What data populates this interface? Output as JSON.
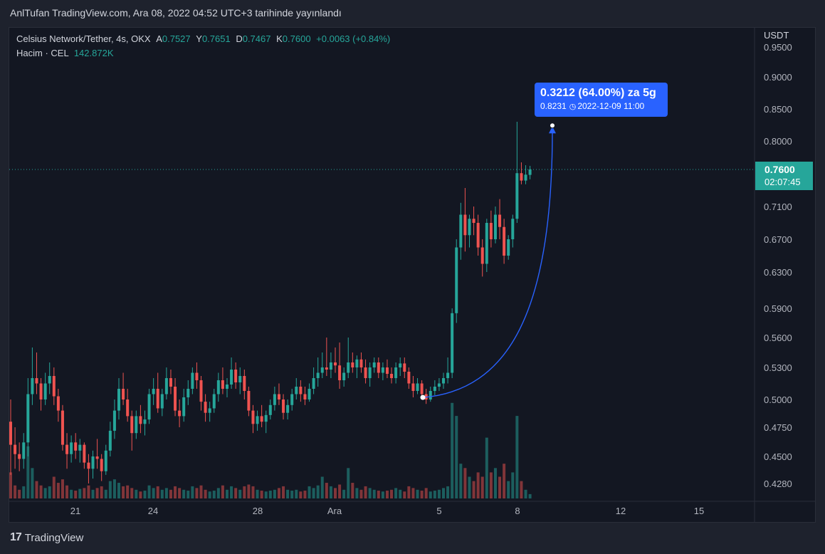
{
  "banner": "AnlTufan TradingView.com, Ara 08, 2022 04:52 UTC+3 tarihinde yayınlandı",
  "legend": {
    "symbol": "Celsius Network/Tether, 4s, OKX",
    "open_label": "A",
    "open": "0.7527",
    "high_label": "Y",
    "high": "0.7651",
    "low_label": "D",
    "low": "0.7467",
    "close_label": "K",
    "close": "0.7600",
    "change": "+0.0063 (+0.84%)",
    "volume_label": "Hacim · CEL",
    "volume": "142.872K"
  },
  "price_axis": {
    "unit": "USDT",
    "ticks": [
      "0.9500",
      "0.9000",
      "0.8500",
      "0.8000",
      "0.7100",
      "0.6700",
      "0.6300",
      "0.5900",
      "0.5600",
      "0.5300",
      "0.5000",
      "0.4750",
      "0.4500",
      "0.4280"
    ]
  },
  "time_axis": {
    "ticks": [
      "21",
      "24",
      "28",
      "Ara",
      "5",
      "8",
      "12",
      "15"
    ]
  },
  "last_price": {
    "price": "0.7600",
    "countdown": "02:07:45"
  },
  "measure": {
    "headline": "0.3212 (64.00%) za 5g",
    "target_price": "0.8231",
    "target_time": "2022-12-09  11:00",
    "clock_icon": "clock-icon"
  },
  "footer": {
    "logo_mark": "17",
    "logo_text": "TradingView"
  },
  "colors": {
    "up": "#26a69a",
    "down": "#ef5350",
    "background": "#131722",
    "measure": "#2962ff",
    "grid": "#1f2430"
  },
  "chart_data": {
    "type": "candlestick",
    "symbol": "Celsius Network/Tether",
    "interval": "4s",
    "exchange": "OKX",
    "y_axis_ticks": [
      0.95,
      0.9,
      0.85,
      0.8,
      0.71,
      0.67,
      0.63,
      0.59,
      0.56,
      0.53,
      0.5,
      0.475,
      0.45,
      0.428
    ],
    "x_axis_ticks": [
      "21",
      "24",
      "28",
      "Ara",
      "5",
      "8",
      "12",
      "15"
    ],
    "last_price": 0.76,
    "measure_start": {
      "price": 0.5019,
      "time": "2022-12-04 ~08:00"
    },
    "measure_end": {
      "price": 0.8231,
      "time": "2022-12-09 11:00"
    },
    "measure_change": 0.3212,
    "measure_change_pct": 64.0,
    "candles": [
      {
        "o": 0.48,
        "h": 0.5,
        "l": 0.435,
        "c": 0.46,
        "v": 30
      },
      {
        "o": 0.46,
        "h": 0.475,
        "l": 0.44,
        "c": 0.452,
        "v": 15
      },
      {
        "o": 0.452,
        "h": 0.462,
        "l": 0.438,
        "c": 0.448,
        "v": 10
      },
      {
        "o": 0.448,
        "h": 0.47,
        "l": 0.44,
        "c": 0.462,
        "v": 14
      },
      {
        "o": 0.462,
        "h": 0.52,
        "l": 0.45,
        "c": 0.505,
        "v": 60
      },
      {
        "o": 0.505,
        "h": 0.55,
        "l": 0.495,
        "c": 0.52,
        "v": 35
      },
      {
        "o": 0.52,
        "h": 0.545,
        "l": 0.505,
        "c": 0.515,
        "v": 20
      },
      {
        "o": 0.515,
        "h": 0.52,
        "l": 0.49,
        "c": 0.5,
        "v": 15
      },
      {
        "o": 0.5,
        "h": 0.525,
        "l": 0.495,
        "c": 0.515,
        "v": 12
      },
      {
        "o": 0.515,
        "h": 0.535,
        "l": 0.505,
        "c": 0.522,
        "v": 14
      },
      {
        "o": 0.522,
        "h": 0.53,
        "l": 0.495,
        "c": 0.503,
        "v": 25
      },
      {
        "o": 0.503,
        "h": 0.51,
        "l": 0.48,
        "c": 0.49,
        "v": 18
      },
      {
        "o": 0.49,
        "h": 0.495,
        "l": 0.455,
        "c": 0.46,
        "v": 22
      },
      {
        "o": 0.46,
        "h": 0.47,
        "l": 0.44,
        "c": 0.452,
        "v": 15
      },
      {
        "o": 0.452,
        "h": 0.468,
        "l": 0.445,
        "c": 0.462,
        "v": 10
      },
      {
        "o": 0.462,
        "h": 0.47,
        "l": 0.448,
        "c": 0.455,
        "v": 9
      },
      {
        "o": 0.455,
        "h": 0.465,
        "l": 0.445,
        "c": 0.46,
        "v": 11
      },
      {
        "o": 0.46,
        "h": 0.462,
        "l": 0.44,
        "c": 0.445,
        "v": 12
      },
      {
        "o": 0.445,
        "h": 0.452,
        "l": 0.428,
        "c": 0.44,
        "v": 15
      },
      {
        "o": 0.44,
        "h": 0.455,
        "l": 0.432,
        "c": 0.45,
        "v": 10
      },
      {
        "o": 0.45,
        "h": 0.465,
        "l": 0.44,
        "c": 0.448,
        "v": 12
      },
      {
        "o": 0.448,
        "h": 0.452,
        "l": 0.43,
        "c": 0.438,
        "v": 14
      },
      {
        "o": 0.438,
        "h": 0.46,
        "l": 0.435,
        "c": 0.455,
        "v": 10
      },
      {
        "o": 0.455,
        "h": 0.48,
        "l": 0.45,
        "c": 0.472,
        "v": 20
      },
      {
        "o": 0.472,
        "h": 0.5,
        "l": 0.465,
        "c": 0.49,
        "v": 22
      },
      {
        "o": 0.49,
        "h": 0.52,
        "l": 0.482,
        "c": 0.51,
        "v": 18
      },
      {
        "o": 0.51,
        "h": 0.525,
        "l": 0.495,
        "c": 0.5,
        "v": 14
      },
      {
        "o": 0.5,
        "h": 0.51,
        "l": 0.48,
        "c": 0.485,
        "v": 15
      },
      {
        "o": 0.485,
        "h": 0.49,
        "l": 0.455,
        "c": 0.47,
        "v": 12
      },
      {
        "o": 0.47,
        "h": 0.49,
        "l": 0.465,
        "c": 0.485,
        "v": 10
      },
      {
        "o": 0.485,
        "h": 0.495,
        "l": 0.47,
        "c": 0.478,
        "v": 8
      },
      {
        "o": 0.478,
        "h": 0.49,
        "l": 0.468,
        "c": 0.482,
        "v": 9
      },
      {
        "o": 0.482,
        "h": 0.51,
        "l": 0.478,
        "c": 0.505,
        "v": 15
      },
      {
        "o": 0.505,
        "h": 0.52,
        "l": 0.495,
        "c": 0.51,
        "v": 12
      },
      {
        "o": 0.51,
        "h": 0.525,
        "l": 0.488,
        "c": 0.492,
        "v": 14
      },
      {
        "o": 0.492,
        "h": 0.51,
        "l": 0.485,
        "c": 0.505,
        "v": 10
      },
      {
        "o": 0.505,
        "h": 0.53,
        "l": 0.5,
        "c": 0.52,
        "v": 12
      },
      {
        "o": 0.52,
        "h": 0.528,
        "l": 0.505,
        "c": 0.512,
        "v": 10
      },
      {
        "o": 0.512,
        "h": 0.52,
        "l": 0.485,
        "c": 0.49,
        "v": 14
      },
      {
        "o": 0.49,
        "h": 0.5,
        "l": 0.475,
        "c": 0.485,
        "v": 12
      },
      {
        "o": 0.485,
        "h": 0.51,
        "l": 0.48,
        "c": 0.502,
        "v": 10
      },
      {
        "o": 0.502,
        "h": 0.518,
        "l": 0.495,
        "c": 0.51,
        "v": 9
      },
      {
        "o": 0.51,
        "h": 0.53,
        "l": 0.505,
        "c": 0.525,
        "v": 14
      },
      {
        "o": 0.525,
        "h": 0.535,
        "l": 0.51,
        "c": 0.518,
        "v": 12
      },
      {
        "o": 0.518,
        "h": 0.522,
        "l": 0.49,
        "c": 0.498,
        "v": 15
      },
      {
        "o": 0.498,
        "h": 0.505,
        "l": 0.48,
        "c": 0.488,
        "v": 10
      },
      {
        "o": 0.488,
        "h": 0.498,
        "l": 0.48,
        "c": 0.492,
        "v": 8
      },
      {
        "o": 0.492,
        "h": 0.51,
        "l": 0.488,
        "c": 0.505,
        "v": 9
      },
      {
        "o": 0.505,
        "h": 0.525,
        "l": 0.498,
        "c": 0.518,
        "v": 12
      },
      {
        "o": 0.518,
        "h": 0.53,
        "l": 0.505,
        "c": 0.51,
        "v": 15
      },
      {
        "o": 0.51,
        "h": 0.52,
        "l": 0.502,
        "c": 0.514,
        "v": 10
      },
      {
        "o": 0.514,
        "h": 0.54,
        "l": 0.51,
        "c": 0.528,
        "v": 14
      },
      {
        "o": 0.528,
        "h": 0.535,
        "l": 0.51,
        "c": 0.516,
        "v": 12
      },
      {
        "o": 0.516,
        "h": 0.53,
        "l": 0.505,
        "c": 0.522,
        "v": 10
      },
      {
        "o": 0.522,
        "h": 0.528,
        "l": 0.5,
        "c": 0.508,
        "v": 14
      },
      {
        "o": 0.508,
        "h": 0.512,
        "l": 0.485,
        "c": 0.49,
        "v": 16
      },
      {
        "o": 0.49,
        "h": 0.495,
        "l": 0.47,
        "c": 0.478,
        "v": 14
      },
      {
        "o": 0.478,
        "h": 0.49,
        "l": 0.472,
        "c": 0.485,
        "v": 10
      },
      {
        "o": 0.485,
        "h": 0.495,
        "l": 0.475,
        "c": 0.48,
        "v": 9
      },
      {
        "o": 0.48,
        "h": 0.49,
        "l": 0.47,
        "c": 0.486,
        "v": 8
      },
      {
        "o": 0.486,
        "h": 0.5,
        "l": 0.482,
        "c": 0.495,
        "v": 9
      },
      {
        "o": 0.495,
        "h": 0.512,
        "l": 0.49,
        "c": 0.505,
        "v": 10
      },
      {
        "o": 0.505,
        "h": 0.515,
        "l": 0.495,
        "c": 0.5,
        "v": 12
      },
      {
        "o": 0.5,
        "h": 0.505,
        "l": 0.482,
        "c": 0.488,
        "v": 14
      },
      {
        "o": 0.488,
        "h": 0.5,
        "l": 0.482,
        "c": 0.495,
        "v": 10
      },
      {
        "o": 0.495,
        "h": 0.51,
        "l": 0.49,
        "c": 0.505,
        "v": 9
      },
      {
        "o": 0.505,
        "h": 0.52,
        "l": 0.5,
        "c": 0.512,
        "v": 10
      },
      {
        "o": 0.512,
        "h": 0.518,
        "l": 0.498,
        "c": 0.505,
        "v": 8
      },
      {
        "o": 0.505,
        "h": 0.512,
        "l": 0.495,
        "c": 0.5,
        "v": 9
      },
      {
        "o": 0.5,
        "h": 0.515,
        "l": 0.498,
        "c": 0.51,
        "v": 14
      },
      {
        "o": 0.51,
        "h": 0.53,
        "l": 0.505,
        "c": 0.52,
        "v": 12
      },
      {
        "o": 0.52,
        "h": 0.54,
        "l": 0.512,
        "c": 0.525,
        "v": 15
      },
      {
        "o": 0.525,
        "h": 0.545,
        "l": 0.52,
        "c": 0.53,
        "v": 25
      },
      {
        "o": 0.53,
        "h": 0.56,
        "l": 0.522,
        "c": 0.528,
        "v": 18
      },
      {
        "o": 0.528,
        "h": 0.545,
        "l": 0.52,
        "c": 0.535,
        "v": 14
      },
      {
        "o": 0.535,
        "h": 0.55,
        "l": 0.525,
        "c": 0.532,
        "v": 12
      },
      {
        "o": 0.532,
        "h": 0.555,
        "l": 0.51,
        "c": 0.518,
        "v": 16
      },
      {
        "o": 0.518,
        "h": 0.53,
        "l": 0.512,
        "c": 0.525,
        "v": 10
      },
      {
        "o": 0.525,
        "h": 0.56,
        "l": 0.52,
        "c": 0.535,
        "v": 35
      },
      {
        "o": 0.535,
        "h": 0.545,
        "l": 0.525,
        "c": 0.53,
        "v": 18
      },
      {
        "o": 0.53,
        "h": 0.542,
        "l": 0.52,
        "c": 0.538,
        "v": 12
      },
      {
        "o": 0.538,
        "h": 0.545,
        "l": 0.525,
        "c": 0.53,
        "v": 10
      },
      {
        "o": 0.53,
        "h": 0.538,
        "l": 0.515,
        "c": 0.52,
        "v": 14
      },
      {
        "o": 0.52,
        "h": 0.535,
        "l": 0.512,
        "c": 0.53,
        "v": 12
      },
      {
        "o": 0.53,
        "h": 0.54,
        "l": 0.525,
        "c": 0.535,
        "v": 10
      },
      {
        "o": 0.535,
        "h": 0.54,
        "l": 0.52,
        "c": 0.525,
        "v": 9
      },
      {
        "o": 0.525,
        "h": 0.535,
        "l": 0.518,
        "c": 0.53,
        "v": 8
      },
      {
        "o": 0.53,
        "h": 0.538,
        "l": 0.52,
        "c": 0.524,
        "v": 9
      },
      {
        "o": 0.524,
        "h": 0.53,
        "l": 0.515,
        "c": 0.52,
        "v": 10
      },
      {
        "o": 0.52,
        "h": 0.535,
        "l": 0.515,
        "c": 0.53,
        "v": 12
      },
      {
        "o": 0.53,
        "h": 0.54,
        "l": 0.522,
        "c": 0.534,
        "v": 10
      },
      {
        "o": 0.534,
        "h": 0.54,
        "l": 0.52,
        "c": 0.526,
        "v": 8
      },
      {
        "o": 0.526,
        "h": 0.53,
        "l": 0.51,
        "c": 0.515,
        "v": 14
      },
      {
        "o": 0.515,
        "h": 0.522,
        "l": 0.502,
        "c": 0.508,
        "v": 12
      },
      {
        "o": 0.508,
        "h": 0.52,
        "l": 0.505,
        "c": 0.515,
        "v": 10
      },
      {
        "o": 0.515,
        "h": 0.518,
        "l": 0.502,
        "c": 0.505,
        "v": 9
      },
      {
        "o": 0.505,
        "h": 0.51,
        "l": 0.496,
        "c": 0.5,
        "v": 12
      },
      {
        "o": 0.5,
        "h": 0.512,
        "l": 0.498,
        "c": 0.508,
        "v": 8
      },
      {
        "o": 0.508,
        "h": 0.518,
        "l": 0.504,
        "c": 0.512,
        "v": 9
      },
      {
        "o": 0.512,
        "h": 0.52,
        "l": 0.508,
        "c": 0.515,
        "v": 10
      },
      {
        "o": 0.515,
        "h": 0.525,
        "l": 0.51,
        "c": 0.52,
        "v": 12
      },
      {
        "o": 0.52,
        "h": 0.54,
        "l": 0.515,
        "c": 0.525,
        "v": 14
      },
      {
        "o": 0.525,
        "h": 0.59,
        "l": 0.52,
        "c": 0.585,
        "v": 110
      },
      {
        "o": 0.585,
        "h": 0.67,
        "l": 0.575,
        "c": 0.66,
        "v": 95
      },
      {
        "o": 0.66,
        "h": 0.715,
        "l": 0.645,
        "c": 0.7,
        "v": 40
      },
      {
        "o": 0.7,
        "h": 0.735,
        "l": 0.655,
        "c": 0.675,
        "v": 35
      },
      {
        "o": 0.675,
        "h": 0.7,
        "l": 0.66,
        "c": 0.695,
        "v": 25
      },
      {
        "o": 0.695,
        "h": 0.71,
        "l": 0.675,
        "c": 0.69,
        "v": 20
      },
      {
        "o": 0.69,
        "h": 0.7,
        "l": 0.65,
        "c": 0.66,
        "v": 30
      },
      {
        "o": 0.66,
        "h": 0.67,
        "l": 0.625,
        "c": 0.64,
        "v": 25
      },
      {
        "o": 0.64,
        "h": 0.695,
        "l": 0.63,
        "c": 0.69,
        "v": 70
      },
      {
        "o": 0.69,
        "h": 0.705,
        "l": 0.66,
        "c": 0.67,
        "v": 30
      },
      {
        "o": 0.67,
        "h": 0.71,
        "l": 0.665,
        "c": 0.7,
        "v": 35
      },
      {
        "o": 0.7,
        "h": 0.72,
        "l": 0.67,
        "c": 0.685,
        "v": 25
      },
      {
        "o": 0.685,
        "h": 0.695,
        "l": 0.64,
        "c": 0.65,
        "v": 40
      },
      {
        "o": 0.65,
        "h": 0.675,
        "l": 0.645,
        "c": 0.67,
        "v": 20
      },
      {
        "o": 0.67,
        "h": 0.7,
        "l": 0.66,
        "c": 0.695,
        "v": 30
      },
      {
        "o": 0.695,
        "h": 0.83,
        "l": 0.69,
        "c": 0.755,
        "v": 95
      },
      {
        "o": 0.755,
        "h": 0.77,
        "l": 0.74,
        "c": 0.745,
        "v": 20
      },
      {
        "o": 0.745,
        "h": 0.766,
        "l": 0.74,
        "c": 0.753,
        "v": 10
      },
      {
        "o": 0.7527,
        "h": 0.7651,
        "l": 0.7467,
        "c": 0.76,
        "v": 5
      }
    ]
  }
}
